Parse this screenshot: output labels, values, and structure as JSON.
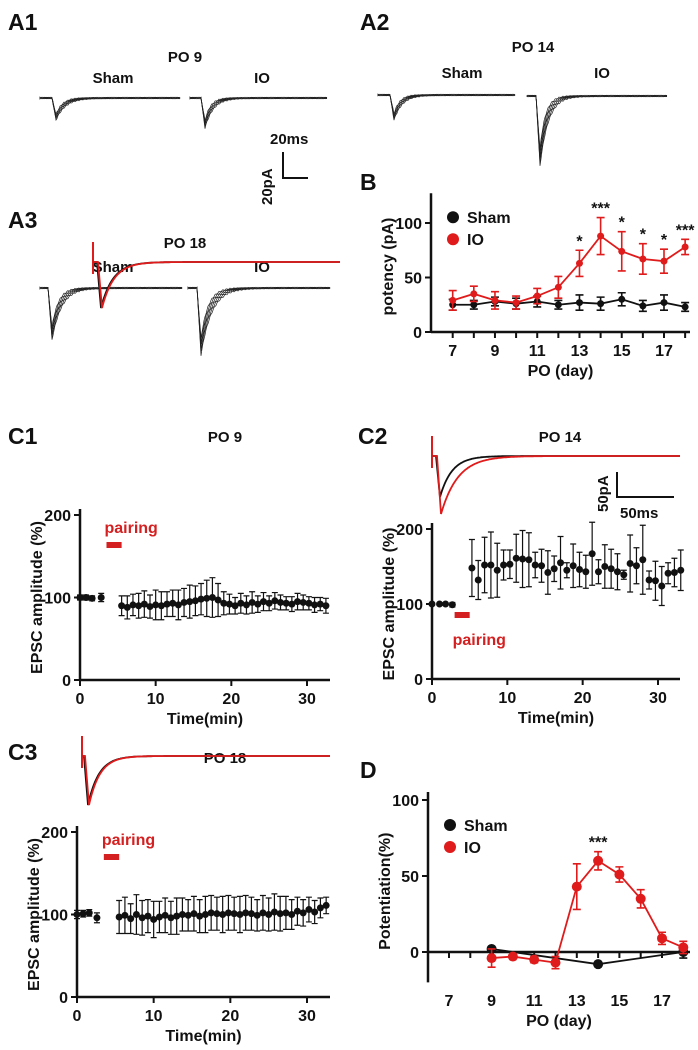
{
  "colors": {
    "sham": "#111111",
    "io": "#e01b1b",
    "pairing": "#d42020"
  },
  "panels": {
    "A1": {
      "label": "A1",
      "title": "PO 9",
      "sham": "Sham",
      "io": "IO",
      "scale_time": "20ms",
      "scale_amp": "20pA"
    },
    "A2": {
      "label": "A2",
      "title": "PO 14",
      "sham": "Sham",
      "io": "IO"
    },
    "A3": {
      "label": "A3",
      "title": "PO 18",
      "sham": "Sham",
      "io": "IO"
    },
    "B": {
      "label": "B"
    },
    "C1": {
      "label": "C1",
      "title": "PO  9"
    },
    "C2": {
      "label": "C2",
      "title": "PO  14",
      "scale_amp": "50pA",
      "scale_time": "50ms"
    },
    "C3": {
      "label": "C3",
      "title": "PO  18"
    },
    "D": {
      "label": "D"
    }
  },
  "chart_data": [
    {
      "id": "B",
      "type": "line",
      "xlabel": "PO (day)",
      "ylabel": "potency (pA)",
      "xlim": [
        7,
        18
      ],
      "ylim": [
        0,
        120
      ],
      "xticks": [
        7,
        9,
        11,
        13,
        15,
        17
      ],
      "yticks": [
        0,
        50,
        100
      ],
      "legend": {
        "placement": "top-left",
        "entries": [
          "Sham",
          "IO"
        ]
      },
      "x": [
        7,
        8,
        9,
        10,
        11,
        12,
        13,
        14,
        15,
        16,
        17,
        18
      ],
      "series": [
        {
          "name": "Sham",
          "values": [
            25,
            25,
            28,
            26,
            28,
            25,
            27,
            26,
            30,
            24,
            27,
            23
          ],
          "err": [
            5,
            4,
            4,
            5,
            5,
            4,
            7,
            6,
            6,
            5,
            7,
            4
          ]
        },
        {
          "name": "IO",
          "values": [
            29,
            35,
            29,
            27,
            33,
            41,
            63,
            88,
            74,
            67,
            65,
            78
          ],
          "err": [
            9,
            7,
            8,
            6,
            7,
            10,
            12,
            17,
            18,
            14,
            11,
            7
          ]
        }
      ],
      "annotations": [
        {
          "x": 13,
          "text": "*"
        },
        {
          "x": 14,
          "text": "***"
        },
        {
          "x": 15,
          "text": "*"
        },
        {
          "x": 16,
          "text": "*"
        },
        {
          "x": 17,
          "text": "*"
        },
        {
          "x": 18,
          "text": "***"
        }
      ]
    },
    {
      "id": "C1",
      "type": "scatter",
      "xlabel": "Time(min)",
      "ylabel": "EPSC amplitude (%)",
      "xlim": [
        0,
        33
      ],
      "ylim": [
        0,
        200
      ],
      "xticks": [
        0,
        10,
        20,
        30
      ],
      "yticks": [
        0,
        100,
        200
      ],
      "annotation": "pairing",
      "pairing_min": [
        3.5,
        5.5
      ],
      "baseline": {
        "x": [
          0,
          0.8,
          1.6,
          2.8
        ],
        "values": [
          100,
          100,
          99,
          100
        ],
        "err": [
          3,
          3,
          3,
          5
        ]
      },
      "post": {
        "x_start": 5.5,
        "x_step": 0.75,
        "values": [
          90,
          88,
          91,
          90,
          92,
          89,
          91,
          90,
          92,
          93,
          91,
          94,
          95,
          96,
          98,
          99,
          100,
          97,
          93,
          92,
          90,
          93,
          91,
          94,
          92,
          95,
          93,
          96,
          94,
          93,
          92,
          95,
          94,
          93,
          91,
          92,
          90
        ],
        "err": [
          12,
          14,
          13,
          15,
          16,
          14,
          18,
          17,
          15,
          16,
          18,
          17,
          20,
          18,
          19,
          22,
          24,
          20,
          14,
          12,
          10,
          12,
          11,
          13,
          10,
          11,
          9,
          10,
          9,
          8,
          9,
          10,
          9,
          8,
          9,
          8,
          9
        ]
      }
    },
    {
      "id": "C2",
      "type": "scatter",
      "xlabel": "Time(min)",
      "ylabel": "EPSC amplitude (%)",
      "xlim": [
        0,
        33
      ],
      "ylim": [
        0,
        200
      ],
      "xticks": [
        0,
        10,
        20,
        30
      ],
      "yticks": [
        0,
        100,
        200
      ],
      "annotation": "pairing",
      "pairing_min": [
        3,
        5
      ],
      "baseline": {
        "x": [
          0,
          1,
          1.8,
          2.7
        ],
        "values": [
          100,
          100,
          100,
          99
        ],
        "err": [
          1,
          1,
          1,
          3
        ]
      },
      "post": {
        "x_start": 5.3,
        "x_step": 0.84,
        "values": [
          148,
          132,
          152,
          152,
          145,
          152,
          153,
          161,
          160,
          159,
          152,
          151,
          142,
          147,
          155,
          145,
          151,
          146,
          143,
          167,
          143,
          150,
          147,
          143,
          139,
          154,
          151,
          159,
          132,
          131,
          124,
          141,
          142,
          145
        ],
        "err": [
          38,
          26,
          37,
          44,
          36,
          20,
          19,
          32,
          38,
          36,
          17,
          22,
          29,
          17,
          35,
          10,
          29,
          23,
          22,
          42,
          16,
          29,
          26,
          24,
          6,
          38,
          24,
          46,
          12,
          26,
          26,
          14,
          19,
          27
        ]
      }
    },
    {
      "id": "C3",
      "type": "scatter",
      "xlabel": "Time(min)",
      "ylabel": "EPSC amplitude (%)",
      "xlim": [
        0,
        33
      ],
      "ylim": [
        0,
        200
      ],
      "xticks": [
        0,
        10,
        20,
        30
      ],
      "yticks": [
        0,
        100,
        200
      ],
      "annotation": "pairing",
      "pairing_min": [
        3.5,
        5.5
      ],
      "baseline": {
        "x": [
          0,
          0.8,
          1.6,
          2.6
        ],
        "values": [
          100,
          101,
          102,
          96
        ],
        "err": [
          5,
          4,
          4,
          6
        ]
      },
      "post": {
        "x_start": 5.5,
        "x_step": 0.75,
        "values": [
          97,
          99,
          95,
          100,
          96,
          98,
          94,
          97,
          99,
          96,
          98,
          100,
          99,
          101,
          98,
          100,
          102,
          101,
          100,
          102,
          101,
          100,
          102,
          101,
          99,
          102,
          100,
          103,
          101,
          102,
          100,
          104,
          102,
          106,
          103,
          108,
          111
        ],
        "err": [
          20,
          22,
          18,
          24,
          21,
          20,
          22,
          19,
          21,
          20,
          22,
          20,
          19,
          21,
          20,
          22,
          21,
          20,
          22,
          21,
          20,
          22,
          21,
          20,
          19,
          21,
          20,
          22,
          21,
          20,
          18,
          17,
          16,
          15,
          14,
          12,
          10
        ]
      }
    },
    {
      "id": "D",
      "type": "line",
      "xlabel": "PO (day)",
      "ylabel": "Potentiation(%)",
      "xlim": [
        7,
        18
      ],
      "ylim": [
        -20,
        100
      ],
      "xticks": [
        7,
        9,
        11,
        13,
        15,
        17
      ],
      "yticks": [
        0,
        50,
        100
      ],
      "legend": {
        "placement": "top-left",
        "entries": [
          "Sham",
          "IO"
        ]
      },
      "series": [
        {
          "name": "Sham",
          "x": [
            9,
            14,
            18
          ],
          "values": [
            2,
            -8,
            0
          ],
          "err": [
            1,
            1,
            4
          ]
        },
        {
          "name": "IO",
          "x": [
            9,
            10,
            11,
            12,
            13,
            14,
            15,
            16,
            17,
            18
          ],
          "values": [
            -4,
            -3,
            -5,
            -7,
            43,
            60,
            51,
            35,
            9,
            3
          ],
          "err": [
            6,
            1,
            2,
            4,
            15,
            6,
            5,
            6,
            4,
            4
          ]
        }
      ],
      "annotations": [
        {
          "x": 14,
          "text": "***"
        }
      ]
    }
  ]
}
